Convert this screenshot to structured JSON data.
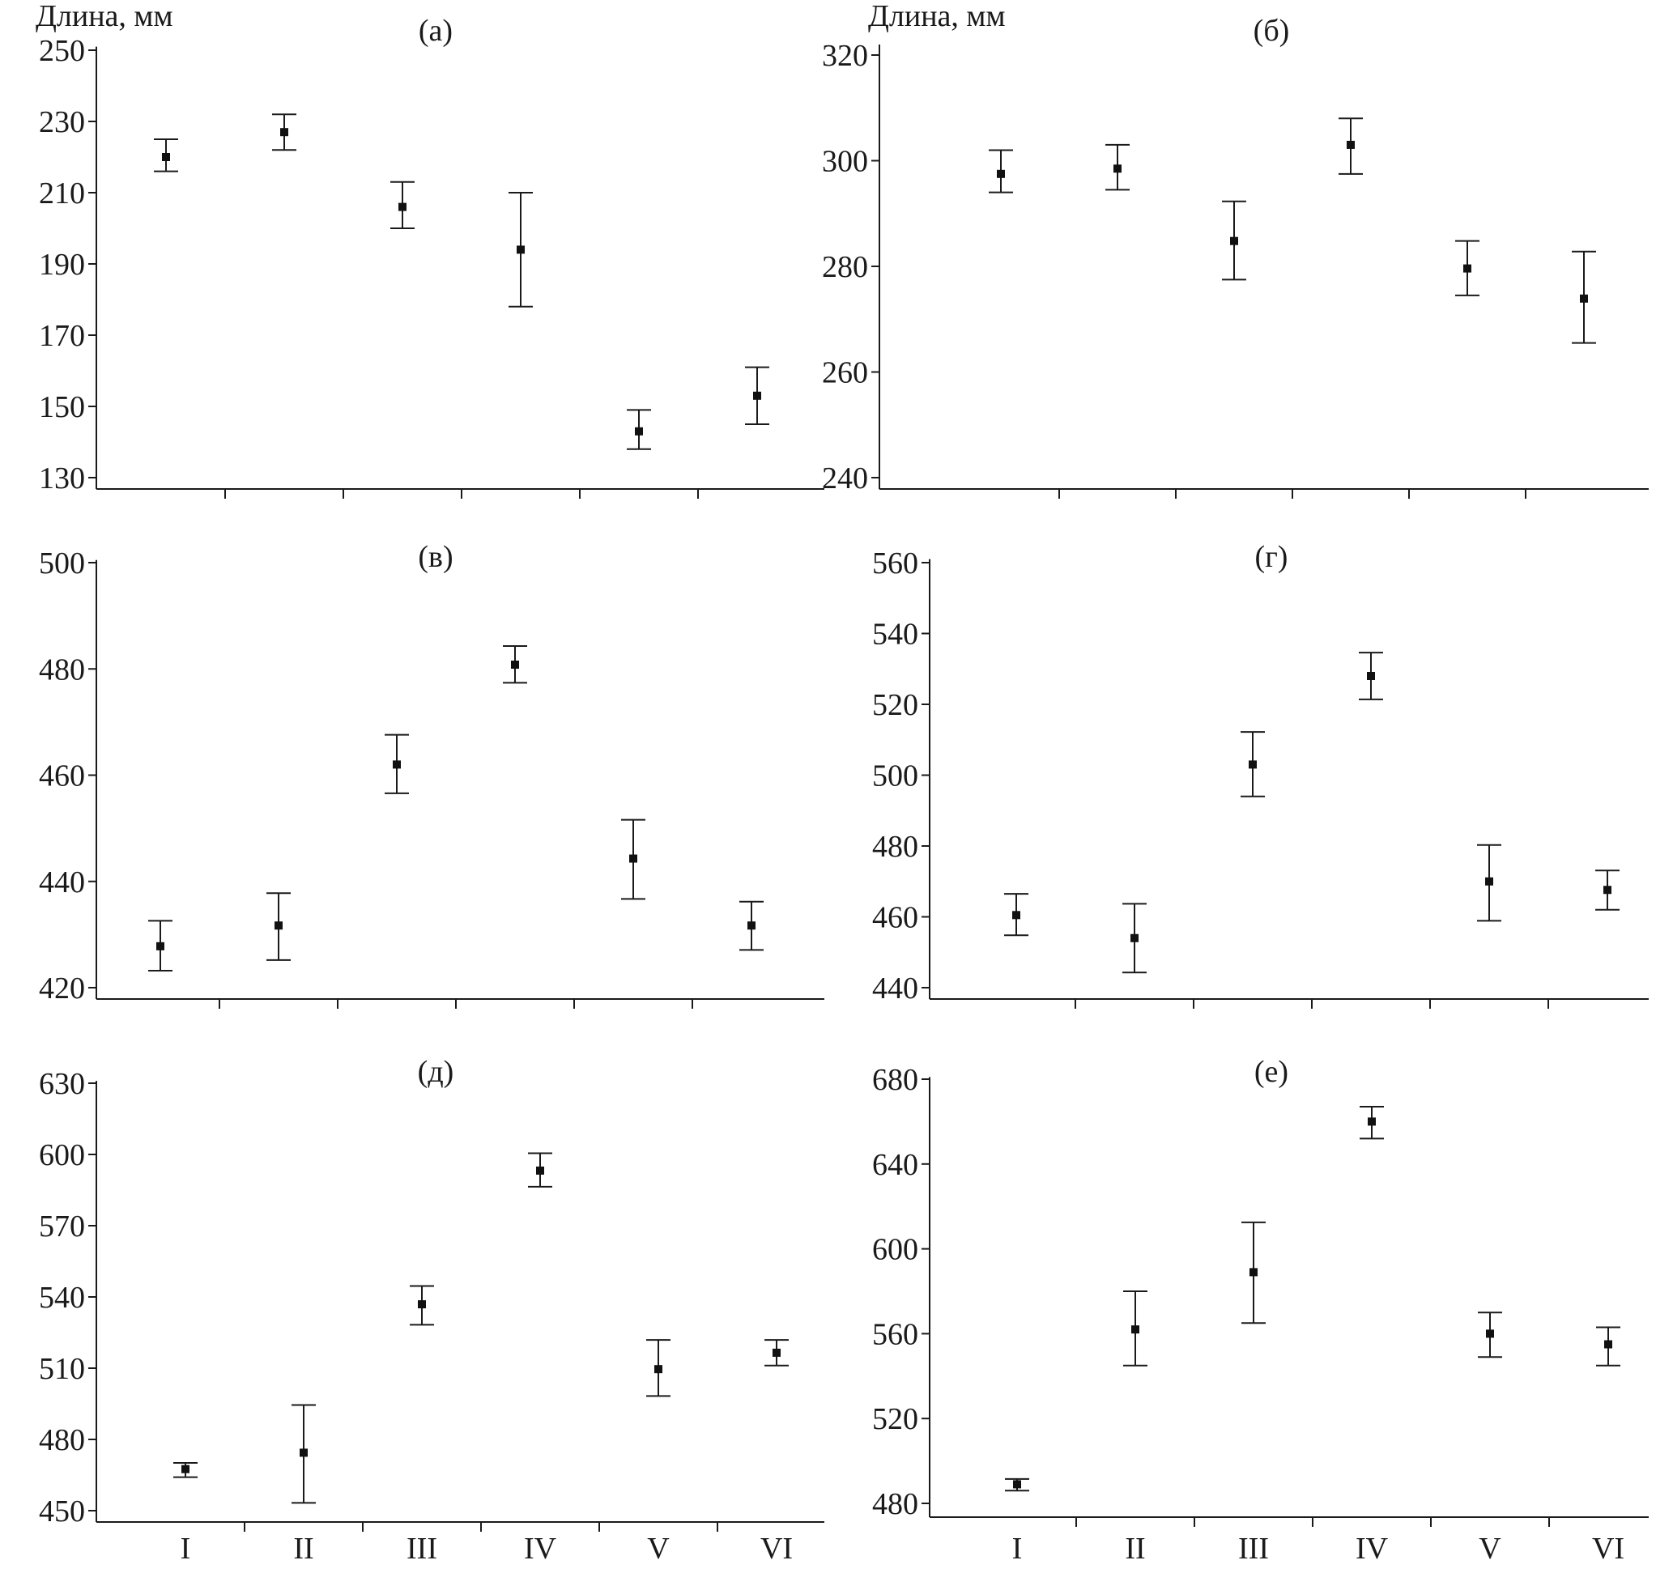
{
  "chart_data": [
    {
      "type": "scatter",
      "panel_label": "(а)",
      "ylabel": "Длина, мм",
      "categories": [
        "I",
        "II",
        "III",
        "IV",
        "V",
        "VI"
      ],
      "show_category_labels": false,
      "yticks": [
        130,
        150,
        170,
        190,
        210,
        230,
        250
      ],
      "ylim": [
        127,
        251
      ],
      "series": [
        {
          "values": [
            220,
            227,
            206,
            194,
            143,
            153
          ],
          "lower": [
            216,
            222,
            200,
            178,
            138,
            145
          ],
          "upper": [
            225,
            232,
            213,
            210,
            149,
            161
          ]
        }
      ]
    },
    {
      "type": "scatter",
      "panel_label": "(б)",
      "ylabel": "Длина, мм",
      "categories": [
        "I",
        "II",
        "III",
        "IV",
        "V",
        "VI"
      ],
      "show_category_labels": false,
      "yticks": [
        240,
        260,
        280,
        300,
        320
      ],
      "ylim": [
        238,
        322
      ],
      "series": [
        {
          "values": [
            297.5,
            298.5,
            284.8,
            303,
            279.6,
            273.9
          ],
          "lower": [
            294,
            294.5,
            277.5,
            297.5,
            274.5,
            265.5
          ],
          "upper": [
            302,
            303,
            292.3,
            308,
            284.8,
            282.8
          ]
        }
      ]
    },
    {
      "type": "scatter",
      "panel_label": "(в)",
      "ylabel": "",
      "categories": [
        "I",
        "II",
        "III",
        "IV",
        "V",
        "VI"
      ],
      "show_category_labels": false,
      "yticks": [
        420,
        440,
        460,
        480,
        500
      ],
      "ylim": [
        417.5,
        500.5
      ],
      "series": [
        {
          "values": [
            427.8,
            431.7,
            462,
            480.8,
            444.3,
            431.7
          ],
          "lower": [
            423.2,
            425.2,
            456.6,
            477.4,
            436.7,
            427.1
          ],
          "upper": [
            432.6,
            437.8,
            467.6,
            484.3,
            451.6,
            436.2
          ]
        }
      ]
    },
    {
      "type": "scatter",
      "panel_label": "(г)",
      "ylabel": "",
      "categories": [
        "I",
        "II",
        "III",
        "IV",
        "V",
        "VI"
      ],
      "show_category_labels": false,
      "yticks": [
        440,
        460,
        480,
        500,
        520,
        540,
        560
      ],
      "ylim": [
        436,
        561
      ],
      "series": [
        {
          "values": [
            460.5,
            454,
            503,
            528,
            470,
            467.6
          ],
          "lower": [
            454.8,
            444.3,
            494,
            521.4,
            458.9,
            462
          ],
          "upper": [
            466.5,
            463.7,
            512.2,
            534.6,
            480.3,
            473.1
          ]
        }
      ]
    },
    {
      "type": "scatter",
      "panel_label": "(д)",
      "ylabel": "",
      "categories": [
        "I",
        "II",
        "III",
        "IV",
        "V",
        "VI"
      ],
      "show_category_labels": true,
      "yticks": [
        450,
        480,
        510,
        540,
        570,
        600,
        630
      ],
      "ylim": [
        445,
        631
      ],
      "series": [
        {
          "values": [
            467.5,
            474.4,
            536.9,
            593.2,
            509.6,
            516.5
          ],
          "lower": [
            464.1,
            453.3,
            528.3,
            586.4,
            498.3,
            511.1
          ],
          "upper": [
            470.1,
            494.5,
            544.6,
            600.5,
            521.9,
            521.9
          ]
        }
      ]
    },
    {
      "type": "scatter",
      "panel_label": "(е)",
      "ylabel": "",
      "categories": [
        "I",
        "II",
        "III",
        "IV",
        "V",
        "VI"
      ],
      "show_category_labels": true,
      "yticks": [
        480,
        520,
        560,
        600,
        640,
        680
      ],
      "ylim": [
        473,
        681
      ],
      "series": [
        {
          "values": [
            489,
            562,
            589,
            660,
            560,
            555
          ],
          "lower": [
            486,
            545,
            565,
            652,
            549,
            545
          ],
          "upper": [
            491.5,
            580,
            612.5,
            667,
            570,
            563
          ]
        }
      ]
    }
  ]
}
